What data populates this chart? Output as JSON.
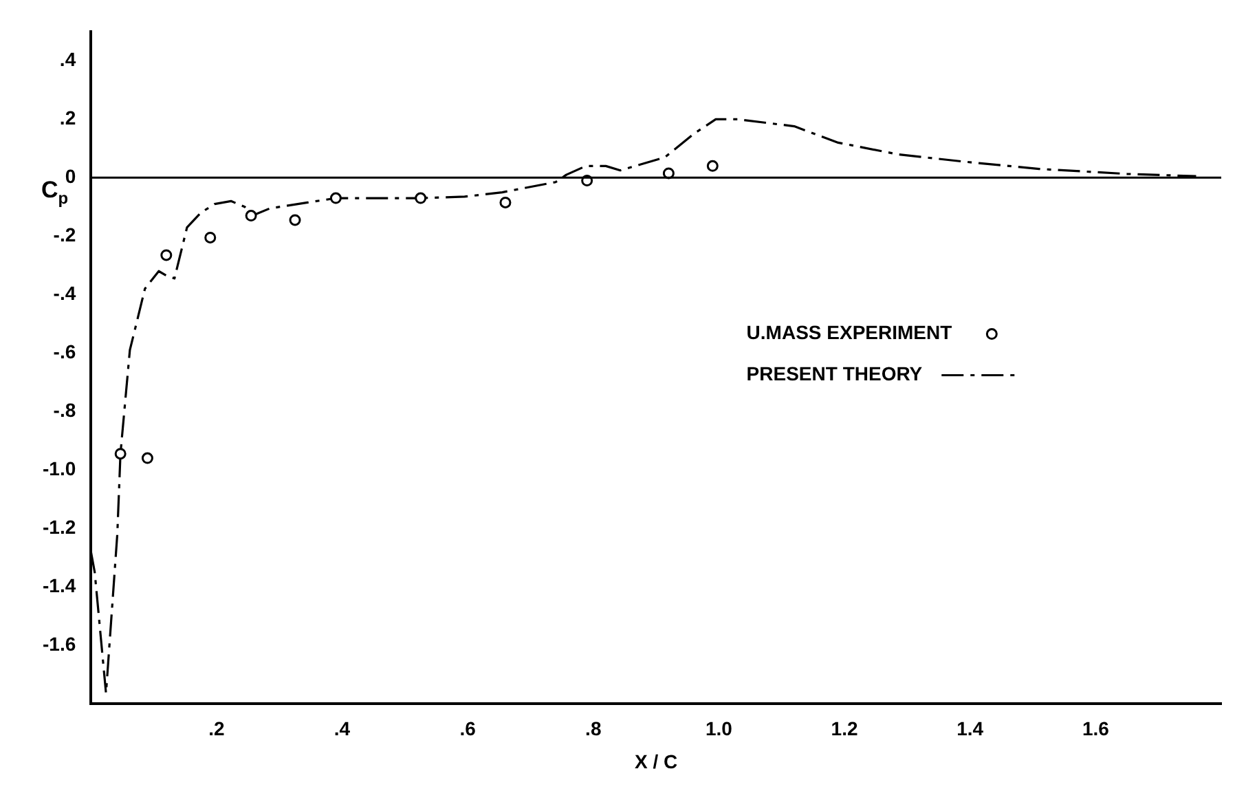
{
  "chart_data": {
    "type": "line",
    "xlabel": "X / C",
    "ylabel": "C$_{p}$",
    "xlim": [
      0,
      1.8
    ],
    "ylim": [
      -1.8,
      0.5
    ],
    "xticks": [
      {
        "value": 0.2,
        "label": ".2"
      },
      {
        "value": 0.4,
        "label": ".4"
      },
      {
        "value": 0.6,
        "label": ".6"
      },
      {
        "value": 0.8,
        "label": ".8"
      },
      {
        "value": 1.0,
        "label": "1.0"
      },
      {
        "value": 1.2,
        "label": "1.2"
      },
      {
        "value": 1.4,
        "label": "1.4"
      },
      {
        "value": 1.6,
        "label": "1.6"
      }
    ],
    "yticks": [
      {
        "value": -1.6,
        "label": "-1.6"
      },
      {
        "value": -1.4,
        "label": "-1.4"
      },
      {
        "value": -1.2,
        "label": "-1.2"
      },
      {
        "value": -1.0,
        "label": "-1.0"
      },
      {
        "value": -0.8,
        "label": "-.8"
      },
      {
        "value": -0.6,
        "label": "-.6"
      },
      {
        "value": -0.4,
        "label": "-.4"
      },
      {
        "value": -0.2,
        "label": "-.2"
      },
      0,
      {
        "value": 0.2,
        "label": ".2"
      },
      {
        "value": 0.4,
        "label": ".4"
      }
    ],
    "grid": false,
    "legend": "right",
    "ref_lines": [
      {
        "axis": "y",
        "value": 0,
        "color": "#000000"
      }
    ],
    "series": [
      {
        "name": "U.MASS EXPERIMENT",
        "type": "scatter",
        "marker": "circle",
        "color": "#000000",
        "x": [
          0.047,
          0.09,
          0.12,
          0.19,
          0.255,
          0.325,
          0.39,
          0.525,
          0.66,
          0.79,
          0.92,
          0.99
        ],
        "values": [
          -0.945,
          -0.96,
          -0.265,
          -0.205,
          -0.13,
          -0.145,
          -0.07,
          -0.07,
          -0.085,
          -0.01,
          0.015,
          0.04
        ]
      },
      {
        "name": "PRESENT THEORY",
        "type": "line",
        "marker": "none",
        "line_style": "dashed",
        "color": "#000000",
        "x": [
          0,
          0.006,
          0.024,
          0.042,
          0.047,
          0.062,
          0.086,
          0.108,
          0.12,
          0.133,
          0.153,
          0.175,
          0.197,
          0.223,
          0.245,
          0.257,
          0.285,
          0.345,
          0.39,
          0.52,
          0.595,
          0.655,
          0.74,
          0.757,
          0.788,
          0.82,
          0.843,
          0.914,
          0.96,
          0.995,
          1.03,
          1.12,
          1.19,
          1.285,
          1.39,
          1.51,
          1.65,
          1.76
        ],
        "values": [
          -1.28,
          -1.35,
          -1.765,
          -1.22,
          -0.945,
          -0.59,
          -0.38,
          -0.32,
          -0.335,
          -0.345,
          -0.17,
          -0.12,
          -0.09,
          -0.08,
          -0.1,
          -0.13,
          -0.105,
          -0.085,
          -0.07,
          -0.07,
          -0.065,
          -0.05,
          -0.015,
          0.01,
          0.04,
          0.04,
          0.025,
          0.07,
          0.15,
          0.2,
          0.2,
          0.176,
          0.12,
          0.08,
          0.055,
          0.03,
          0.013,
          0.005
        ]
      }
    ]
  }
}
